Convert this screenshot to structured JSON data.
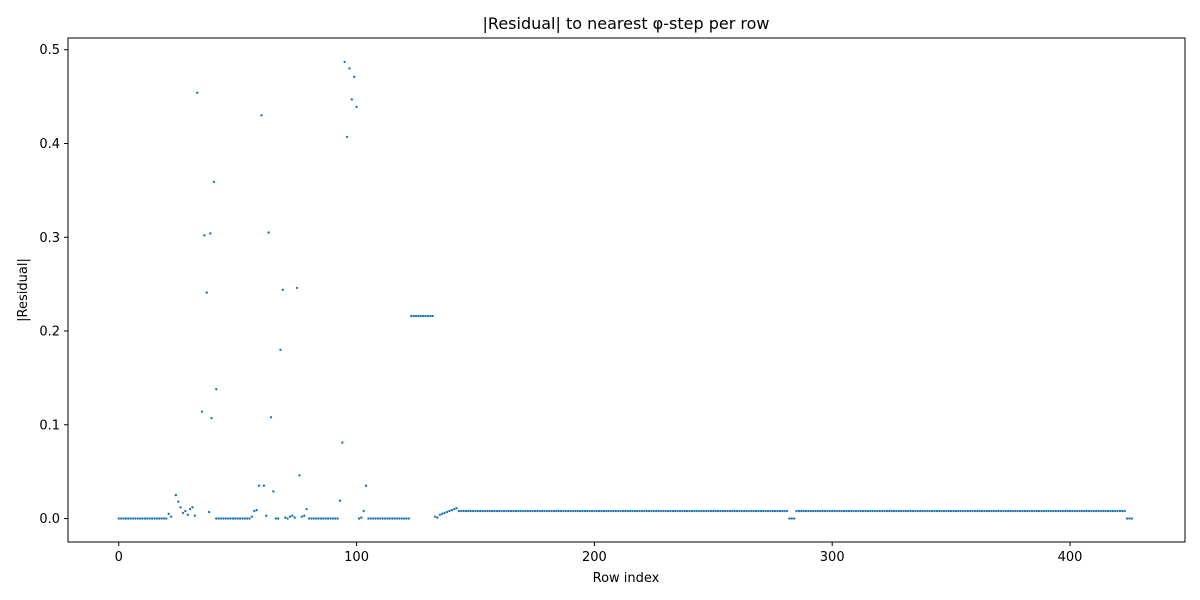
{
  "chart_data": {
    "type": "scatter",
    "title": "|Residual| to nearest φ-step per row",
    "xlabel": "Row index",
    "ylabel": "|Residual|",
    "xlim": [
      -21.35,
      448.35
    ],
    "ylim": [
      -0.025,
      0.5125
    ],
    "xticks": [
      0,
      100,
      200,
      300,
      400
    ],
    "yticks": [
      0.0,
      0.1,
      0.2,
      0.3,
      0.4,
      0.5
    ],
    "ytick_labels": [
      "0.0",
      "0.1",
      "0.2",
      "0.3",
      "0.4",
      "0.5"
    ],
    "grid": false,
    "marker_color": "#1f77b4",
    "series": [
      {
        "segments": [
          {
            "x_start": 0,
            "x_end": 20,
            "value": 0.0
          },
          {
            "x_start": 41,
            "x_end": 55,
            "value": 0.0
          },
          {
            "x_start": 80,
            "x_end": 92,
            "value": 0.0
          },
          {
            "x_start": 105,
            "x_end": 122,
            "value": 0.0
          },
          {
            "x_start": 123,
            "x_end": 132,
            "value": 0.216
          },
          {
            "x_start": 143,
            "x_end": 281,
            "value": 0.008
          },
          {
            "x_start": 282,
            "x_end": 284,
            "value": 0.0
          },
          {
            "x_start": 285,
            "x_end": 423,
            "value": 0.008
          },
          {
            "x_start": 424,
            "x_end": 426,
            "value": 0.0
          }
        ],
        "points": [
          [
            21,
            0.005
          ],
          [
            22,
            0.002
          ],
          [
            24,
            0.025
          ],
          [
            25,
            0.018
          ],
          [
            26,
            0.012
          ],
          [
            27,
            0.006
          ],
          [
            28,
            0.008
          ],
          [
            29,
            0.004
          ],
          [
            30,
            0.01
          ],
          [
            31,
            0.012
          ],
          [
            32,
            0.003
          ],
          [
            33,
            0.454
          ],
          [
            35,
            0.114
          ],
          [
            36,
            0.302
          ],
          [
            37,
            0.241
          ],
          [
            38,
            0.007
          ],
          [
            38.5,
            0.304
          ],
          [
            39,
            0.107
          ],
          [
            40,
            0.359
          ],
          [
            41,
            0.138
          ],
          [
            56,
            0.002
          ],
          [
            57,
            0.008
          ],
          [
            58,
            0.009
          ],
          [
            59,
            0.035
          ],
          [
            60,
            0.43
          ],
          [
            61,
            0.035
          ],
          [
            62,
            0.003
          ],
          [
            63,
            0.305
          ],
          [
            64,
            0.108
          ],
          [
            65,
            0.029
          ],
          [
            66,
            0.0
          ],
          [
            67,
            0.0
          ],
          [
            68,
            0.18
          ],
          [
            69,
            0.244
          ],
          [
            70,
            0.001
          ],
          [
            71,
            0.0
          ],
          [
            72,
            0.002
          ],
          [
            73,
            0.003
          ],
          [
            74,
            0.001
          ],
          [
            75,
            0.246
          ],
          [
            76,
            0.046
          ],
          [
            77,
            0.002
          ],
          [
            78,
            0.003
          ],
          [
            79,
            0.01
          ],
          [
            93,
            0.019
          ],
          [
            94,
            0.081
          ],
          [
            95,
            0.487
          ],
          [
            96,
            0.407
          ],
          [
            97,
            0.48
          ],
          [
            98,
            0.447
          ],
          [
            99,
            0.471
          ],
          [
            100,
            0.439
          ],
          [
            101,
            0.0
          ],
          [
            102,
            0.001
          ],
          [
            103,
            0.008
          ],
          [
            104,
            0.035
          ],
          [
            133,
            0.002
          ],
          [
            134,
            0.001
          ],
          [
            135,
            0.004
          ],
          [
            136,
            0.005
          ],
          [
            137,
            0.006
          ],
          [
            138,
            0.007
          ],
          [
            139,
            0.008
          ],
          [
            140,
            0.009
          ],
          [
            141,
            0.01
          ],
          [
            142,
            0.011
          ]
        ]
      }
    ]
  }
}
